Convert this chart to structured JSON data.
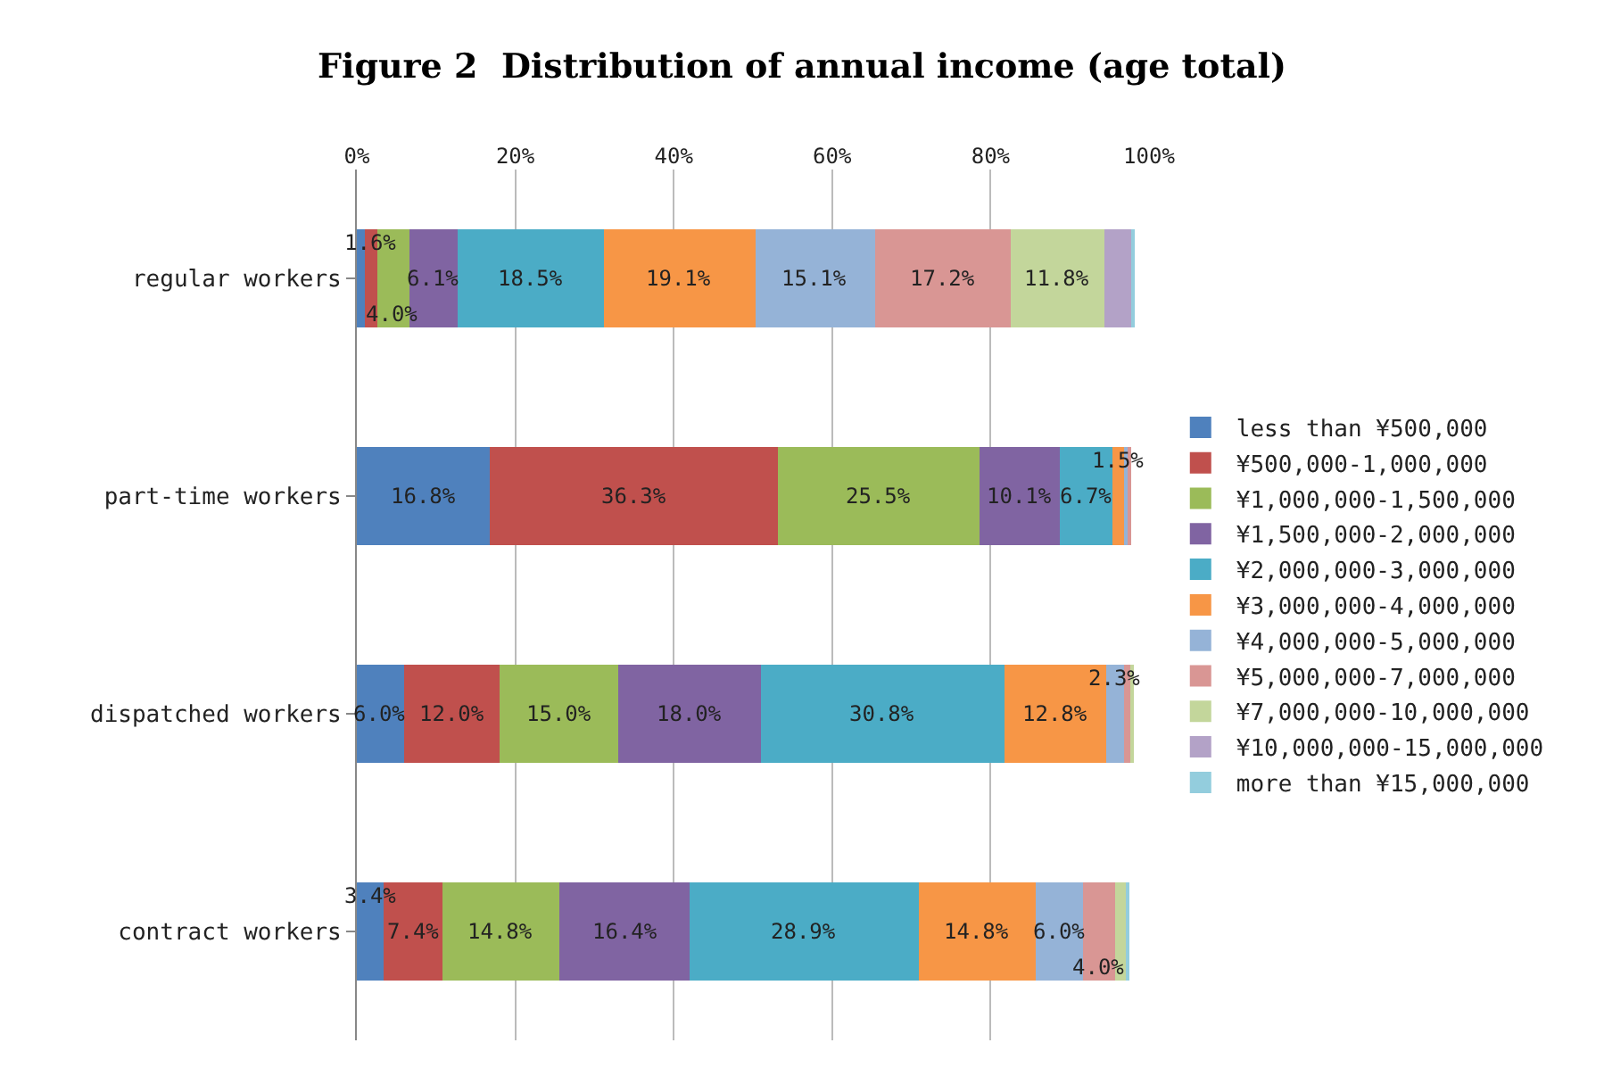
{
  "chart_data": {
    "type": "bar",
    "orientation": "horizontal",
    "stacked": true,
    "title": "Figure 2  Distribution of annual income (age total)",
    "categories": [
      "regular workers",
      "part-time workers",
      "dispatched workers",
      "contract workers"
    ],
    "series": [
      {
        "name": "less than ¥500,000",
        "color": "#4f81bd",
        "values": [
          1.0,
          16.8,
          6.0,
          3.4
        ],
        "value_labels": [
          null,
          "16.8%",
          "6.0%",
          "3.4%"
        ]
      },
      {
        "name": "¥500,000-1,000,000",
        "color": "#c0504d",
        "values": [
          1.6,
          36.3,
          12.0,
          7.4
        ],
        "value_labels": [
          "1.6%",
          "36.3%",
          "12.0%",
          "7.4%"
        ]
      },
      {
        "name": "¥1,000,000-1,500,000",
        "color": "#9bbb59",
        "values": [
          4.0,
          25.5,
          15.0,
          14.8
        ],
        "value_labels": [
          "4.0%",
          "25.5%",
          "15.0%",
          "14.8%"
        ]
      },
      {
        "name": "¥1,500,000-2,000,000",
        "color": "#8064a2",
        "values": [
          6.1,
          10.1,
          18.0,
          16.4
        ],
        "value_labels": [
          "6.1%",
          "10.1%",
          "18.0%",
          "16.4%"
        ]
      },
      {
        "name": "¥2,000,000-3,000,000",
        "color": "#4bacc6",
        "values": [
          18.5,
          6.7,
          30.8,
          28.9
        ],
        "value_labels": [
          "18.5%",
          "6.7%",
          "30.8%",
          "28.9%"
        ]
      },
      {
        "name": "¥3,000,000-4,000,000",
        "color": "#f79646",
        "values": [
          19.1,
          1.5,
          12.8,
          14.8
        ],
        "value_labels": [
          "19.1%",
          "1.5%",
          "12.8%",
          "14.8%"
        ]
      },
      {
        "name": "¥4,000,000-5,000,000",
        "color": "#95b3d7",
        "values": [
          15.1,
          0.6,
          2.3,
          6.0
        ],
        "value_labels": [
          "15.1%",
          null,
          "2.3%",
          "6.0%"
        ]
      },
      {
        "name": "¥5,000,000-7,000,000",
        "color": "#d99694",
        "values": [
          17.2,
          0.3,
          0.7,
          4.0
        ],
        "value_labels": [
          "17.2%",
          null,
          null,
          "4.0%"
        ]
      },
      {
        "name": "¥7,000,000-10,000,000",
        "color": "#c3d69b",
        "values": [
          11.8,
          0,
          0.5,
          1.5
        ],
        "value_labels": [
          "11.8%",
          null,
          null,
          null
        ]
      },
      {
        "name": "¥10,000,000-15,000,000",
        "color": "#b3a2c7",
        "values": [
          3.5,
          0,
          0,
          null
        ],
        "value_labels": [
          null,
          null,
          null,
          null
        ]
      },
      {
        "name": "more than ¥15,000,000",
        "color": "#93cddd",
        "values": [
          0.3,
          0,
          0,
          0.3
        ],
        "value_labels": [
          null,
          null,
          null,
          null
        ]
      }
    ],
    "xlim": [
      0,
      100
    ],
    "xticks": [
      {
        "value": 0,
        "label": "0%"
      },
      {
        "value": 20,
        "label": "20%"
      },
      {
        "value": 40,
        "label": "40%"
      },
      {
        "value": 60,
        "label": "60%"
      },
      {
        "value": 80,
        "label": "80%"
      },
      {
        "value": 100,
        "label": "100%"
      }
    ],
    "grid": "x",
    "legend": "right"
  }
}
